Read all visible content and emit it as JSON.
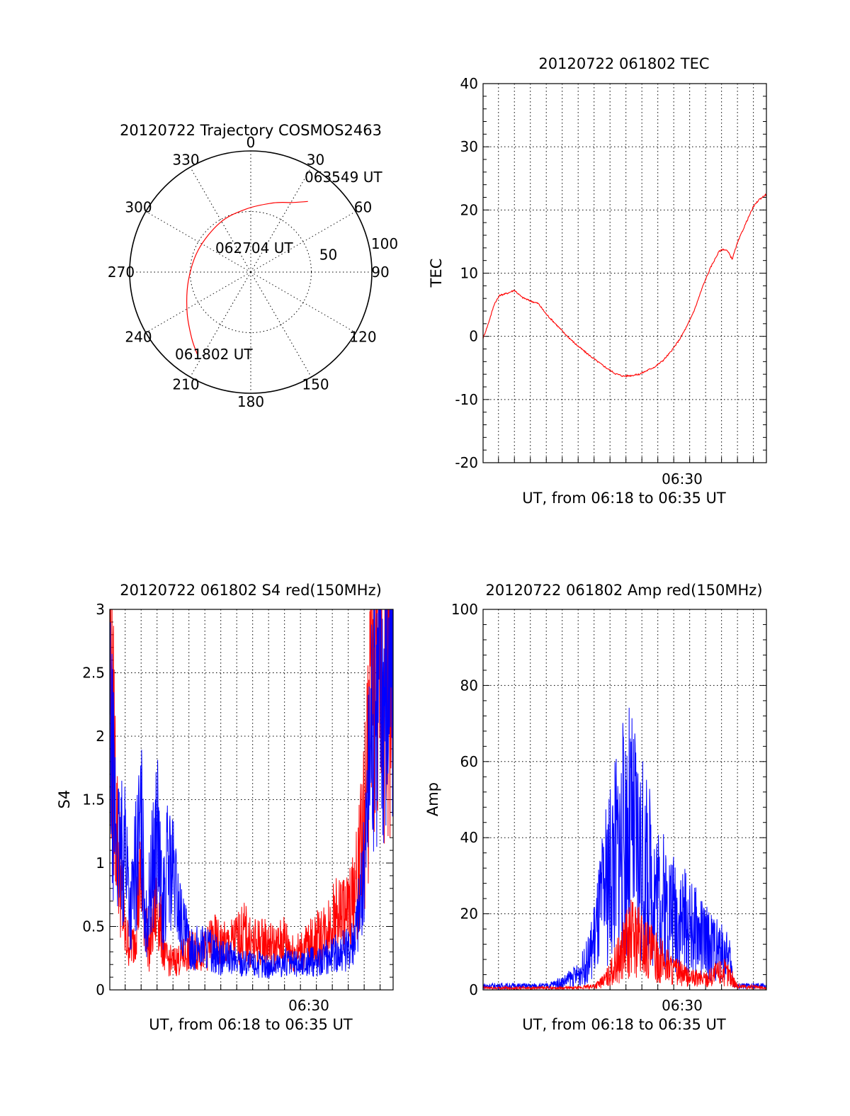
{
  "colors": {
    "red": "#ff0000",
    "blue": "#0000ff"
  },
  "chart_data": [
    {
      "id": "polar",
      "type": "polar",
      "title": "20120722 Trajectory COSMOS2463",
      "azimuth_labels": [
        "0",
        "30",
        "60",
        "90",
        "120",
        "150",
        "180",
        "210",
        "240",
        "270",
        "300",
        "330"
      ],
      "radial_labels": [
        "50",
        "100"
      ],
      "rlim": [
        0,
        100
      ],
      "trajectory": {
        "color": "red",
        "points": [
          {
            "az": 213,
            "r": 81
          },
          {
            "az": 222,
            "r": 73
          },
          {
            "az": 238,
            "r": 62
          },
          {
            "az": 262,
            "r": 52
          },
          {
            "az": 293,
            "r": 47
          },
          {
            "az": 328,
            "r": 48
          },
          {
            "az": 355,
            "r": 52
          },
          {
            "az": 18,
            "r": 60
          },
          {
            "az": 31,
            "r": 67
          },
          {
            "az": 39,
            "r": 75
          }
        ]
      },
      "annotations": [
        {
          "text": "063549 UT"
        },
        {
          "text": "062704 UT"
        },
        {
          "text": "061802 UT"
        }
      ]
    },
    {
      "id": "tec",
      "type": "line",
      "title": "20120722 061802 TEC",
      "xlabel": "UT, from 06:18 to 06:35 UT",
      "ylabel": "TEC",
      "xlim": [
        "06:18:02",
        "06:35:49"
      ],
      "ylim": [
        -20,
        40
      ],
      "yticks": [
        "-20",
        "-10",
        "0",
        "10",
        "20",
        "30",
        "40"
      ],
      "xtick": "06:30",
      "series": [
        {
          "color": "red",
          "x": [
            "06:18:02",
            "06:18:20",
            "06:18:45",
            "06:19:05",
            "06:19:32",
            "06:20:00",
            "06:20:28",
            "06:21:00",
            "06:21:30",
            "06:22:00",
            "06:22:30",
            "06:23:10",
            "06:23:50",
            "06:24:30",
            "06:25:10",
            "06:25:50",
            "06:26:20",
            "06:26:50",
            "06:27:20",
            "06:27:50",
            "06:28:20",
            "06:28:50",
            "06:29:20",
            "06:29:50",
            "06:30:20",
            "06:30:50",
            "06:31:20",
            "06:31:50",
            "06:32:20",
            "06:32:50",
            "06:33:05",
            "06:33:20",
            "06:33:30",
            "06:33:40",
            "06:34:00",
            "06:34:20",
            "06:34:40",
            "06:35:00",
            "06:35:20",
            "06:35:49"
          ],
          "values": [
            -0.3,
            1.8,
            5.2,
            6.5,
            6.8,
            7.3,
            6.2,
            5.6,
            5.2,
            3.5,
            2.2,
            0.4,
            -1.2,
            -2.6,
            -3.9,
            -5.1,
            -5.9,
            -6.3,
            -6.2,
            -6.0,
            -5.4,
            -4.8,
            -3.8,
            -2.4,
            -0.6,
            1.6,
            4.4,
            8.0,
            11.0,
            13.4,
            13.8,
            13.6,
            13.0,
            12.2,
            14.8,
            16.8,
            18.7,
            20.5,
            21.6,
            22.5
          ]
        }
      ]
    },
    {
      "id": "s4",
      "type": "line",
      "title": "20120722 061802 S4 red(150MHz)",
      "xlabel": "UT, from 06:18 to 06:35 UT",
      "ylabel": "S4",
      "xlim": [
        "06:18:02",
        "06:35:49"
      ],
      "ylim": [
        0,
        3
      ],
      "yticks": [
        "0",
        "0.5",
        "1",
        "1.5",
        "2",
        "2.5",
        "3"
      ],
      "xtick": "06:30",
      "series": [
        {
          "color": "red",
          "x": [
            "06:18:02",
            "06:18:30",
            "06:19:00",
            "06:19:30",
            "06:20:00",
            "06:20:30",
            "06:21:00",
            "06:21:30",
            "06:22:00",
            "06:22:30",
            "06:23:00",
            "06:23:30",
            "06:24:00",
            "06:24:30",
            "06:25:00",
            "06:25:30",
            "06:26:00",
            "06:26:30",
            "06:27:00",
            "06:27:30",
            "06:28:00",
            "06:28:30",
            "06:29:00",
            "06:29:30",
            "06:30:00",
            "06:30:30",
            "06:31:00",
            "06:31:30",
            "06:32:00",
            "06:32:30",
            "06:33:00",
            "06:33:30",
            "06:34:00",
            "06:34:30",
            "06:35:00",
            "06:35:49"
          ],
          "values": [
            2.6,
            1.2,
            0.4,
            0.35,
            0.9,
            0.3,
            0.7,
            0.25,
            0.22,
            0.25,
            0.3,
            0.32,
            0.3,
            0.4,
            0.35,
            0.35,
            0.4,
            0.45,
            0.35,
            0.38,
            0.36,
            0.33,
            0.4,
            0.3,
            0.3,
            0.35,
            0.4,
            0.45,
            0.55,
            0.6,
            0.6,
            0.8,
            1.3,
            2.4,
            2.6,
            2.4
          ]
        },
        {
          "color": "blue",
          "x": [
            "06:18:02",
            "06:18:20",
            "06:18:40",
            "06:19:00",
            "06:19:20",
            "06:19:40",
            "06:20:00",
            "06:20:20",
            "06:20:40",
            "06:21:00",
            "06:21:20",
            "06:21:40",
            "06:22:00",
            "06:22:30",
            "06:23:00",
            "06:23:30",
            "06:24:00",
            "06:24:30",
            "06:25:00",
            "06:25:30",
            "06:26:00",
            "06:26:30",
            "06:27:00",
            "06:27:30",
            "06:28:00",
            "06:28:30",
            "06:29:00",
            "06:29:30",
            "06:30:00",
            "06:30:30",
            "06:31:00",
            "06:31:30",
            "06:32:00",
            "06:32:30",
            "06:33:00",
            "06:33:30",
            "06:34:00",
            "06:34:30",
            "06:35:00",
            "06:35:49"
          ],
          "values": [
            2.0,
            1.4,
            1.0,
            1.2,
            0.6,
            1.0,
            1.3,
            0.5,
            0.9,
            1.3,
            0.6,
            1.0,
            0.9,
            0.55,
            0.35,
            0.33,
            0.35,
            0.3,
            0.25,
            0.25,
            0.22,
            0.22,
            0.2,
            0.2,
            0.18,
            0.2,
            0.22,
            0.2,
            0.2,
            0.22,
            0.22,
            0.25,
            0.28,
            0.3,
            0.32,
            0.5,
            0.9,
            2.3,
            2.5,
            2.5
          ]
        }
      ]
    },
    {
      "id": "amp",
      "type": "line",
      "title": "20120722 061802 Amp red(150MHz)",
      "xlabel": "UT, from 06:18 to 06:35 UT",
      "ylabel": "Amp",
      "xlim": [
        "06:18:02",
        "06:35:49"
      ],
      "ylim": [
        0,
        100
      ],
      "yticks": [
        "0",
        "20",
        "40",
        "60",
        "80",
        "100"
      ],
      "xtick": "06:30",
      "series": [
        {
          "color": "blue",
          "x": [
            "06:18:02",
            "06:19:00",
            "06:20:00",
            "06:21:00",
            "06:22:00",
            "06:23:00",
            "06:24:00",
            "06:24:40",
            "06:25:10",
            "06:25:40",
            "06:26:10",
            "06:26:40",
            "06:27:10",
            "06:27:40",
            "06:28:10",
            "06:28:40",
            "06:29:10",
            "06:29:40",
            "06:30:10",
            "06:30:40",
            "06:31:10",
            "06:31:40",
            "06:32:10",
            "06:32:40",
            "06:33:10",
            "06:33:30",
            "06:33:45",
            "06:34:00",
            "06:35:00",
            "06:35:49"
          ],
          "values": [
            1,
            1,
            1,
            1,
            1,
            2,
            4,
            8,
            16,
            26,
            34,
            38,
            42,
            38,
            32,
            28,
            24,
            22,
            20,
            18,
            16,
            14,
            12,
            11,
            9,
            8,
            2,
            1,
            1,
            1
          ]
        },
        {
          "color": "red",
          "x": [
            "06:18:02",
            "06:20:00",
            "06:22:00",
            "06:24:00",
            "06:25:00",
            "06:25:30",
            "06:26:00",
            "06:26:30",
            "06:27:00",
            "06:27:30",
            "06:28:00",
            "06:28:30",
            "06:29:00",
            "06:29:30",
            "06:30:00",
            "06:30:30",
            "06:31:00",
            "06:31:30",
            "06:32:00",
            "06:32:30",
            "06:33:00",
            "06:33:30",
            "06:34:00",
            "06:35:49"
          ],
          "values": [
            0.5,
            0.5,
            0.5,
            0.5,
            1,
            2,
            4,
            8,
            12,
            14,
            12,
            10,
            8,
            7,
            5,
            4,
            3,
            3,
            3,
            4,
            5,
            4,
            1,
            0.5
          ]
        }
      ]
    }
  ]
}
